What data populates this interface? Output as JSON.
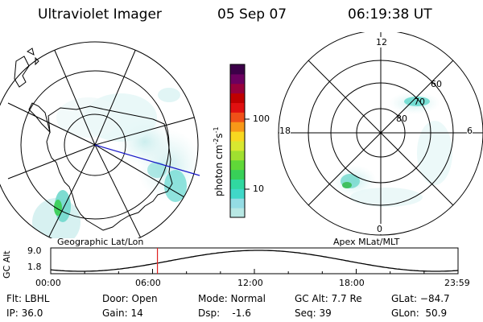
{
  "header": {
    "title": "Ultraviolet Imager",
    "date": "05 Sep 07",
    "time": "06:19:38 UT"
  },
  "left_panel": {
    "caption": "Geographic Lat/Lon"
  },
  "right_panel": {
    "caption": "Apex MLat/MLT",
    "mlt_labels": {
      "top": "12",
      "left": "18",
      "right": "6",
      "bottom": "0"
    },
    "lat_labels": [
      "60",
      "70",
      "80"
    ]
  },
  "colorbar": {
    "unit_label": "photon cm",
    "unit_exp1": "-2",
    "unit_mid": "s",
    "unit_exp2": "-1",
    "ticks": [
      "100",
      "10"
    ],
    "colors": [
      "#b8e8e4",
      "#94dce4",
      "#40d8c8",
      "#30d8a0",
      "#38d058",
      "#60d838",
      "#a0e030",
      "#d8e830",
      "#f8d820",
      "#f89818",
      "#f05018",
      "#e01010",
      "#c00000",
      "#98003c",
      "#6c0060",
      "#3c0048"
    ]
  },
  "timeline": {
    "ylabel": "GC Alt",
    "ymax": "9.0",
    "ymin": "1.8",
    "xticks": [
      "00:00",
      "06:00",
      "12:00",
      "18:00",
      "23:59"
    ],
    "marker_fraction": 0.262
  },
  "footer": {
    "flt": "Flt: LBHL",
    "ip": "IP: 36.0",
    "door": "Door: Open",
    "gain": "Gain: 14",
    "mode": "Mode: Normal",
    "dsp": "Dsp:    -1.6",
    "gcalt": "GC Alt: 7.7 Re",
    "seq": "Seq: 39",
    "glat": "GLat: −84.7",
    "glon": "GLon:  50.9"
  }
}
